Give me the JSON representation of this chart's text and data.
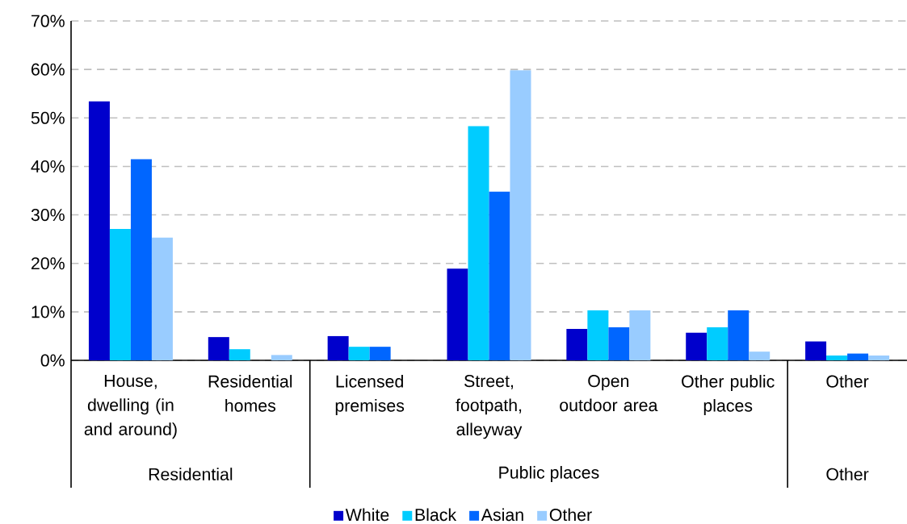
{
  "chart_data": {
    "type": "bar",
    "categories": [
      "House, dwelling (in and around)",
      "Residential homes",
      "Licensed premises",
      "Street, footpath, alleyway",
      "Open outdoor area",
      "Other public places",
      "Other"
    ],
    "series": [
      {
        "name": "White",
        "color": "#0000cc",
        "values": [
          53.4,
          4.8,
          5.0,
          18.9,
          6.5,
          5.7,
          3.9
        ]
      },
      {
        "name": "Black",
        "color": "#00ccff",
        "values": [
          27.1,
          2.3,
          2.8,
          48.3,
          10.3,
          6.8,
          1.0
        ]
      },
      {
        "name": "Asian",
        "color": "#0066ff",
        "values": [
          41.5,
          null,
          2.8,
          34.8,
          6.8,
          10.3,
          1.4
        ]
      },
      {
        "name": "Other",
        "color": "#99ccff",
        "values": [
          25.3,
          1.1,
          null,
          59.8,
          10.3,
          1.8,
          1.0
        ]
      }
    ],
    "ylim": [
      0,
      70
    ],
    "yticks": [
      {
        "value": 0,
        "label": "0%"
      },
      {
        "value": 10,
        "label": "10%"
      },
      {
        "value": 20,
        "label": "20%"
      },
      {
        "value": 30,
        "label": "30%"
      },
      {
        "value": 40,
        "label": "40%"
      },
      {
        "value": 50,
        "label": "50%"
      },
      {
        "value": 60,
        "label": "60%"
      },
      {
        "value": 70,
        "label": "70%"
      }
    ],
    "grid": "y",
    "legend": "bottom",
    "annotations": [
      "Residential",
      "Public places",
      "Other"
    ]
  }
}
